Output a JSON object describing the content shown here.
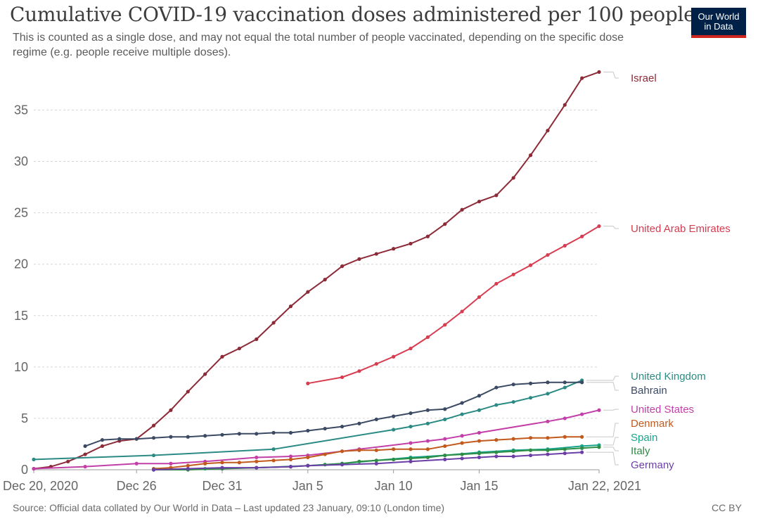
{
  "header": {
    "title": "Cumulative COVID-19 vaccination doses administered per 100 people",
    "subtitle": "This is counted as a single dose, and may not equal the total number of people vaccinated, depending on the specific dose regime (e.g. people receive multiple doses).",
    "logo_line1": "Our World",
    "logo_line2": "in Data"
  },
  "footer": {
    "source": "Source: Official data collated by Our World in Data – Last updated 23 January, 09:10 (London time)",
    "license": "CC BY"
  },
  "colors": {
    "logo_bg": "#002147",
    "logo_accent": "#ce261e"
  },
  "chart_data": {
    "type": "line",
    "x_type": "date",
    "xlim": [
      "2020-12-20",
      "2021-01-22"
    ],
    "ylim": [
      0,
      39
    ],
    "x_ticks": [
      {
        "date": "2020-12-20",
        "label": "Dec 20, 2020"
      },
      {
        "date": "2020-12-26",
        "label": "Dec 26"
      },
      {
        "date": "2020-12-31",
        "label": "Dec 31"
      },
      {
        "date": "2021-01-05",
        "label": "Jan 5"
      },
      {
        "date": "2021-01-10",
        "label": "Jan 10"
      },
      {
        "date": "2021-01-15",
        "label": "Jan 15"
      },
      {
        "date": "2021-01-22",
        "label": "Jan 22, 2021"
      }
    ],
    "y_ticks": [
      0,
      5,
      10,
      15,
      20,
      25,
      30,
      35
    ],
    "grid": true,
    "legend": "end-of-line labels",
    "series": [
      {
        "name": "Israel",
        "color": "#8c2a37",
        "points": [
          [
            "2020-12-20",
            0.1
          ],
          [
            "2020-12-21",
            0.3
          ],
          [
            "2020-12-22",
            0.8
          ],
          [
            "2020-12-23",
            1.5
          ],
          [
            "2020-12-24",
            2.3
          ],
          [
            "2020-12-25",
            2.8
          ],
          [
            "2020-12-26",
            3.0
          ],
          [
            "2020-12-27",
            4.3
          ],
          [
            "2020-12-28",
            5.8
          ],
          [
            "2020-12-29",
            7.6
          ],
          [
            "2020-12-30",
            9.3
          ],
          [
            "2020-12-31",
            11.0
          ],
          [
            "2021-01-01",
            11.8
          ],
          [
            "2021-01-02",
            12.7
          ],
          [
            "2021-01-03",
            14.3
          ],
          [
            "2021-01-04",
            15.9
          ],
          [
            "2021-01-05",
            17.3
          ],
          [
            "2021-01-06",
            18.5
          ],
          [
            "2021-01-07",
            19.8
          ],
          [
            "2021-01-08",
            20.5
          ],
          [
            "2021-01-09",
            21.0
          ],
          [
            "2021-01-10",
            21.5
          ],
          [
            "2021-01-11",
            22.0
          ],
          [
            "2021-01-12",
            22.7
          ],
          [
            "2021-01-13",
            23.9
          ],
          [
            "2021-01-14",
            25.3
          ],
          [
            "2021-01-15",
            26.1
          ],
          [
            "2021-01-16",
            26.7
          ],
          [
            "2021-01-17",
            28.4
          ],
          [
            "2021-01-18",
            30.6
          ],
          [
            "2021-01-19",
            33.0
          ],
          [
            "2021-01-20",
            35.5
          ],
          [
            "2021-01-21",
            38.1
          ],
          [
            "2021-01-22",
            38.7
          ]
        ]
      },
      {
        "name": "United Arab Emirates",
        "color": "#d73c50",
        "points": [
          [
            "2021-01-05",
            8.4
          ],
          [
            "2021-01-07",
            9.0
          ],
          [
            "2021-01-08",
            9.6
          ],
          [
            "2021-01-09",
            10.3
          ],
          [
            "2021-01-10",
            11.0
          ],
          [
            "2021-01-11",
            11.8
          ],
          [
            "2021-01-12",
            12.9
          ],
          [
            "2021-01-13",
            14.1
          ],
          [
            "2021-01-14",
            15.4
          ],
          [
            "2021-01-15",
            16.8
          ],
          [
            "2021-01-16",
            18.1
          ],
          [
            "2021-01-17",
            19.0
          ],
          [
            "2021-01-18",
            19.9
          ],
          [
            "2021-01-19",
            20.9
          ],
          [
            "2021-01-20",
            21.8
          ],
          [
            "2021-01-21",
            22.7
          ],
          [
            "2021-01-22",
            23.7
          ]
        ]
      },
      {
        "name": "United Kingdom",
        "color": "#2b8a83",
        "points": [
          [
            "2020-12-20",
            1.0
          ],
          [
            "2020-12-27",
            1.4
          ],
          [
            "2021-01-03",
            2.0
          ],
          [
            "2021-01-10",
            3.9
          ],
          [
            "2021-01-11",
            4.2
          ],
          [
            "2021-01-12",
            4.5
          ],
          [
            "2021-01-13",
            4.9
          ],
          [
            "2021-01-14",
            5.4
          ],
          [
            "2021-01-15",
            5.8
          ],
          [
            "2021-01-16",
            6.3
          ],
          [
            "2021-01-17",
            6.6
          ],
          [
            "2021-01-18",
            7.0
          ],
          [
            "2021-01-19",
            7.4
          ],
          [
            "2021-01-20",
            8.0
          ],
          [
            "2021-01-21",
            8.7
          ]
        ]
      },
      {
        "name": "Bahrain",
        "color": "#3b4a62",
        "points": [
          [
            "2020-12-23",
            2.3
          ],
          [
            "2020-12-24",
            2.9
          ],
          [
            "2020-12-25",
            3.0
          ],
          [
            "2020-12-26",
            3.0
          ],
          [
            "2020-12-27",
            3.1
          ],
          [
            "2020-12-28",
            3.2
          ],
          [
            "2020-12-29",
            3.2
          ],
          [
            "2020-12-30",
            3.3
          ],
          [
            "2020-12-31",
            3.4
          ],
          [
            "2021-01-01",
            3.5
          ],
          [
            "2021-01-02",
            3.5
          ],
          [
            "2021-01-03",
            3.6
          ],
          [
            "2021-01-04",
            3.6
          ],
          [
            "2021-01-05",
            3.8
          ],
          [
            "2021-01-06",
            4.0
          ],
          [
            "2021-01-07",
            4.2
          ],
          [
            "2021-01-08",
            4.5
          ],
          [
            "2021-01-09",
            4.9
          ],
          [
            "2021-01-10",
            5.2
          ],
          [
            "2021-01-11",
            5.5
          ],
          [
            "2021-01-12",
            5.8
          ],
          [
            "2021-01-13",
            5.9
          ],
          [
            "2021-01-14",
            6.5
          ],
          [
            "2021-01-15",
            7.2
          ],
          [
            "2021-01-16",
            8.0
          ],
          [
            "2021-01-17",
            8.3
          ],
          [
            "2021-01-18",
            8.4
          ],
          [
            "2021-01-19",
            8.5
          ],
          [
            "2021-01-20",
            8.5
          ],
          [
            "2021-01-21",
            8.5
          ]
        ]
      },
      {
        "name": "United States",
        "color": "#c33fa8",
        "points": [
          [
            "2020-12-20",
            0.1
          ],
          [
            "2020-12-23",
            0.3
          ],
          [
            "2020-12-26",
            0.6
          ],
          [
            "2020-12-28",
            0.6
          ],
          [
            "2020-12-30",
            0.8
          ],
          [
            "2021-01-02",
            1.2
          ],
          [
            "2021-01-04",
            1.3
          ],
          [
            "2021-01-05",
            1.4
          ],
          [
            "2021-01-07",
            1.8
          ],
          [
            "2021-01-08",
            2.0
          ],
          [
            "2021-01-11",
            2.6
          ],
          [
            "2021-01-12",
            2.8
          ],
          [
            "2021-01-13",
            3.0
          ],
          [
            "2021-01-14",
            3.3
          ],
          [
            "2021-01-15",
            3.6
          ],
          [
            "2021-01-19",
            4.7
          ],
          [
            "2021-01-20",
            5.0
          ],
          [
            "2021-01-21",
            5.4
          ],
          [
            "2021-01-22",
            5.8
          ]
        ]
      },
      {
        "name": "Denmark",
        "color": "#c15a1c",
        "points": [
          [
            "2020-12-27",
            0.1
          ],
          [
            "2020-12-28",
            0.2
          ],
          [
            "2020-12-29",
            0.4
          ],
          [
            "2020-12-30",
            0.6
          ],
          [
            "2020-12-31",
            0.7
          ],
          [
            "2021-01-01",
            0.7
          ],
          [
            "2021-01-02",
            0.8
          ],
          [
            "2021-01-03",
            0.9
          ],
          [
            "2021-01-04",
            1.0
          ],
          [
            "2021-01-05",
            1.2
          ],
          [
            "2021-01-06",
            1.5
          ],
          [
            "2021-01-07",
            1.8
          ],
          [
            "2021-01-08",
            1.9
          ],
          [
            "2021-01-09",
            1.9
          ],
          [
            "2021-01-10",
            2.0
          ],
          [
            "2021-01-11",
            2.0
          ],
          [
            "2021-01-12",
            2.0
          ],
          [
            "2021-01-13",
            2.3
          ],
          [
            "2021-01-14",
            2.6
          ],
          [
            "2021-01-15",
            2.8
          ],
          [
            "2021-01-16",
            2.9
          ],
          [
            "2021-01-17",
            3.0
          ],
          [
            "2021-01-18",
            3.1
          ],
          [
            "2021-01-19",
            3.1
          ],
          [
            "2021-01-20",
            3.2
          ],
          [
            "2021-01-21",
            3.2
          ]
        ]
      },
      {
        "name": "Spain",
        "color": "#18a48c",
        "points": [
          [
            "2020-12-27",
            0.0
          ],
          [
            "2020-12-30",
            0.1
          ],
          [
            "2021-01-02",
            0.2
          ],
          [
            "2021-01-05",
            0.4
          ],
          [
            "2021-01-07",
            0.6
          ],
          [
            "2021-01-09",
            0.9
          ],
          [
            "2021-01-11",
            1.2
          ],
          [
            "2021-01-13",
            1.4
          ],
          [
            "2021-01-15",
            1.7
          ],
          [
            "2021-01-17",
            1.9
          ],
          [
            "2021-01-19",
            2.0
          ],
          [
            "2021-01-21",
            2.3
          ],
          [
            "2021-01-22",
            2.4
          ]
        ]
      },
      {
        "name": "Italy",
        "color": "#2c8d44",
        "points": [
          [
            "2020-12-27",
            0.0
          ],
          [
            "2020-12-29",
            0.0
          ],
          [
            "2020-12-31",
            0.1
          ],
          [
            "2021-01-02",
            0.2
          ],
          [
            "2021-01-04",
            0.3
          ],
          [
            "2021-01-05",
            0.4
          ],
          [
            "2021-01-06",
            0.5
          ],
          [
            "2021-01-07",
            0.6
          ],
          [
            "2021-01-08",
            0.8
          ],
          [
            "2021-01-09",
            0.9
          ],
          [
            "2021-01-10",
            1.0
          ],
          [
            "2021-01-11",
            1.1
          ],
          [
            "2021-01-12",
            1.2
          ],
          [
            "2021-01-13",
            1.4
          ],
          [
            "2021-01-14",
            1.5
          ],
          [
            "2021-01-15",
            1.6
          ],
          [
            "2021-01-16",
            1.7
          ],
          [
            "2021-01-17",
            1.8
          ],
          [
            "2021-01-18",
            1.9
          ],
          [
            "2021-01-19",
            1.9
          ],
          [
            "2021-01-20",
            2.0
          ],
          [
            "2021-01-21",
            2.1
          ],
          [
            "2021-01-22",
            2.2
          ]
        ]
      },
      {
        "name": "Germany",
        "color": "#6c3fa6",
        "points": [
          [
            "2020-12-27",
            0.0
          ],
          [
            "2020-12-29",
            0.1
          ],
          [
            "2020-12-31",
            0.2
          ],
          [
            "2021-01-02",
            0.2
          ],
          [
            "2021-01-04",
            0.3
          ],
          [
            "2021-01-05",
            0.4
          ],
          [
            "2021-01-07",
            0.5
          ],
          [
            "2021-01-09",
            0.6
          ],
          [
            "2021-01-11",
            0.8
          ],
          [
            "2021-01-13",
            1.0
          ],
          [
            "2021-01-14",
            1.1
          ],
          [
            "2021-01-15",
            1.2
          ],
          [
            "2021-01-16",
            1.3
          ],
          [
            "2021-01-17",
            1.3
          ],
          [
            "2021-01-18",
            1.4
          ],
          [
            "2021-01-19",
            1.5
          ],
          [
            "2021-01-20",
            1.6
          ],
          [
            "2021-01-21",
            1.7
          ]
        ]
      }
    ]
  }
}
